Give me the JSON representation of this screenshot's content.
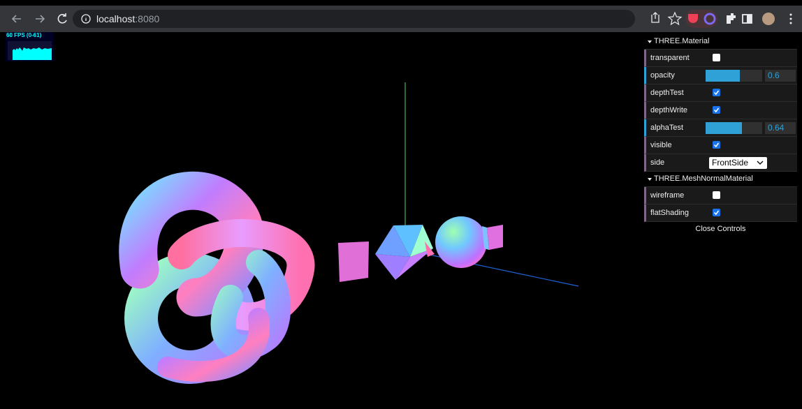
{
  "browser": {
    "url_host": "localhost",
    "url_port": ":8080"
  },
  "stats": {
    "fps_label": "60 FPS (0-61)"
  },
  "gui": {
    "folders": [
      {
        "title": "THREE.Material",
        "controls": [
          {
            "name": "transparent",
            "type": "boolean",
            "value": false
          },
          {
            "name": "opacity",
            "type": "number",
            "value": 0.6
          },
          {
            "name": "depthTest",
            "type": "boolean",
            "value": true
          },
          {
            "name": "depthWrite",
            "type": "boolean",
            "value": true
          },
          {
            "name": "alphaTest",
            "type": "number",
            "value": 0.64
          },
          {
            "name": "visible",
            "type": "boolean",
            "value": true
          },
          {
            "name": "side",
            "type": "option",
            "value": "FrontSide"
          }
        ]
      },
      {
        "title": "THREE.MeshNormalMaterial",
        "controls": [
          {
            "name": "wireframe",
            "type": "boolean",
            "value": false
          },
          {
            "name": "flatShading",
            "type": "boolean",
            "value": true
          }
        ]
      }
    ],
    "close_button": "Close Controls"
  }
}
